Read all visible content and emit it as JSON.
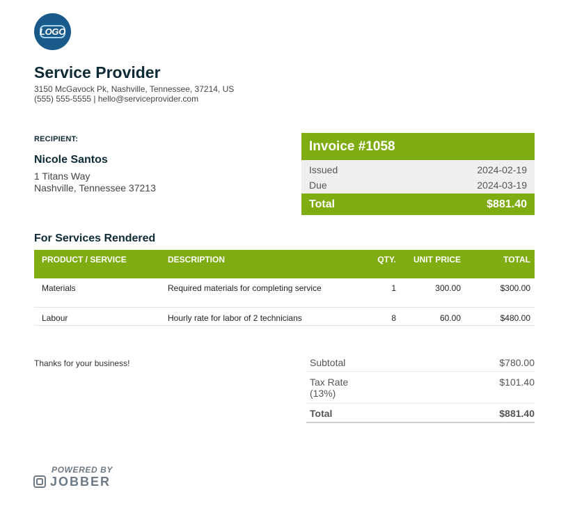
{
  "logo": {
    "text": "LOGO"
  },
  "company": {
    "name": "Service Provider",
    "address": "3150 McGavock Pk, Nashville, Tennessee, 37214, US",
    "contact": "(555) 555-5555 | hello@serviceprovider.com"
  },
  "recipient": {
    "label": "RECIPIENT:",
    "name": "Nicole Santos",
    "street": "1 Titans Way",
    "city": "Nashville, Tennessee 37213"
  },
  "invoice": {
    "title": "Invoice #1058",
    "issued_label": "Issued",
    "issued_value": "2024-02-19",
    "due_label": "Due",
    "due_value": "2024-03-19",
    "total_label": "Total",
    "total_value": "$881.40"
  },
  "section_title": "For Services Rendered",
  "items": {
    "headers": {
      "product": "PRODUCT / SERVICE",
      "description": "DESCRIPTION",
      "qty": "QTY.",
      "unit_price": "UNIT PRICE",
      "total": "TOTAL"
    },
    "rows": [
      {
        "product": "Materials",
        "description": "Required materials for completing service",
        "qty": "1",
        "unit_price": "300.00",
        "total": "$300.00"
      },
      {
        "product": "Labour",
        "description": "Hourly rate for labor of 2 technicians",
        "qty": "8",
        "unit_price": "60.00",
        "total": "$480.00"
      }
    ]
  },
  "thanks": "Thanks for your business!",
  "summary": {
    "subtotal_label": "Subtotal",
    "subtotal_value": "$780.00",
    "tax_label": "Tax Rate",
    "tax_rate": "(13%)",
    "tax_value": "$101.40",
    "total_label": "Total",
    "total_value": "$881.40"
  },
  "footer": {
    "powered_by": "POWERED BY",
    "brand": "JOBBER"
  },
  "colors": {
    "accent_green": "#7fac10",
    "heading_navy": "#0d2a35",
    "logo_blue": "#1a5a8a"
  }
}
